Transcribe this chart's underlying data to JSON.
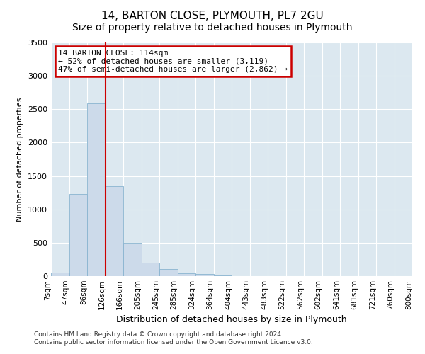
{
  "title": "14, BARTON CLOSE, PLYMOUTH, PL7 2GU",
  "subtitle": "Size of property relative to detached houses in Plymouth",
  "xlabel": "Distribution of detached houses by size in Plymouth",
  "ylabel": "Number of detached properties",
  "bar_color": "#ccdaea",
  "bar_edge_color": "#89b4d0",
  "background_color": "#dce8f0",
  "grid_color": "#ffffff",
  "figure_bg": "#ffffff",
  "annotation_title": "14 BARTON CLOSE: 114sqm",
  "annotation_line1": "← 52% of detached houses are smaller (3,119)",
  "annotation_line2": "47% of semi-detached houses are larger (2,862) →",
  "annotation_box_facecolor": "#ffffff",
  "annotation_box_edgecolor": "#cc0000",
  "red_line_color": "#cc0000",
  "ylim": [
    0,
    3500
  ],
  "bin_labels": [
    "7sqm",
    "47sqm",
    "86sqm",
    "126sqm",
    "166sqm",
    "205sqm",
    "245sqm",
    "285sqm",
    "324sqm",
    "364sqm",
    "404sqm",
    "443sqm",
    "483sqm",
    "522sqm",
    "562sqm",
    "602sqm",
    "641sqm",
    "681sqm",
    "721sqm",
    "760sqm",
    "800sqm"
  ],
  "bar_heights": [
    50,
    1230,
    2590,
    1350,
    495,
    200,
    105,
    45,
    30,
    8,
    5,
    2,
    1,
    0,
    0,
    0,
    0,
    0,
    0,
    0
  ],
  "red_line_bar_index": 3,
  "footer_line1": "Contains HM Land Registry data © Crown copyright and database right 2024.",
  "footer_line2": "Contains public sector information licensed under the Open Government Licence v3.0.",
  "title_fontsize": 11,
  "subtitle_fontsize": 10,
  "xlabel_fontsize": 9,
  "ylabel_fontsize": 8,
  "tick_fontsize": 7.5,
  "footer_fontsize": 6.5,
  "annotation_fontsize": 8
}
